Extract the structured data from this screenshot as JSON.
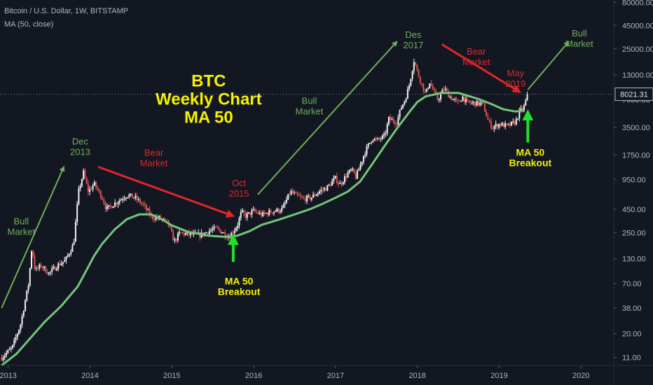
{
  "header": {
    "symbol_line": "Bitcoin / U.S. Dollar, 1W, BITSTAMP",
    "indicator_line": "MA (50, close)"
  },
  "chart_data": {
    "type": "candlestick",
    "scale": "log",
    "grid": false,
    "price_axis_side": "right",
    "x_ticks": [
      "2013",
      "2014",
      "2015",
      "2016",
      "2017",
      "2018",
      "2019",
      "2020"
    ],
    "x_range": [
      2012.9,
      2020.4
    ],
    "y_ticks": [
      11,
      20,
      38,
      70,
      130,
      250,
      450,
      950,
      1750,
      3500,
      7000,
      13000,
      25000,
      45000,
      80000
    ],
    "y_tick_labels": [
      "11.00",
      "20.00",
      "38.00",
      "70.00",
      "130.00",
      "250.00",
      "450.00",
      "950.00",
      "1750.00",
      "3500.00",
      "7000.00",
      "13000.00",
      "25000.00",
      "45000.00",
      "80000.00"
    ],
    "y_range": [
      9,
      85000
    ],
    "last_price": 8021.31,
    "last_price_label": "8021.31",
    "colors": {
      "up": "#f2f2f2",
      "down": "#d9534f",
      "ma": "#74c47a",
      "annotation_green": "#6fae58",
      "annotation_red": "#e0262a",
      "annotation_yellow": "#f5f100",
      "arrow_bright_green": "#1fe02a",
      "background": "#131722",
      "axis_text": "#b2b5be"
    },
    "series": [
      {
        "name": "MA (50, close)",
        "type": "line",
        "points": [
          [
            2012.92,
            9
          ],
          [
            2013.1,
            12
          ],
          [
            2013.25,
            17
          ],
          [
            2013.45,
            27
          ],
          [
            2013.65,
            40
          ],
          [
            2013.85,
            65
          ],
          [
            2013.95,
            95
          ],
          [
            2014.05,
            140
          ],
          [
            2014.15,
            190
          ],
          [
            2014.3,
            270
          ],
          [
            2014.45,
            350
          ],
          [
            2014.6,
            395
          ],
          [
            2014.75,
            395
          ],
          [
            2014.9,
            340
          ],
          [
            2015.0,
            300
          ],
          [
            2015.2,
            255
          ],
          [
            2015.45,
            232
          ],
          [
            2015.65,
            225
          ],
          [
            2015.8,
            232
          ],
          [
            2015.95,
            260
          ],
          [
            2016.1,
            305
          ],
          [
            2016.3,
            345
          ],
          [
            2016.5,
            395
          ],
          [
            2016.7,
            455
          ],
          [
            2016.85,
            520
          ],
          [
            2017.0,
            600
          ],
          [
            2017.15,
            700
          ],
          [
            2017.3,
            900
          ],
          [
            2017.45,
            1400
          ],
          [
            2017.6,
            2200
          ],
          [
            2017.75,
            3400
          ],
          [
            2017.9,
            5100
          ],
          [
            2018.0,
            6600
          ],
          [
            2018.1,
            7600
          ],
          [
            2018.3,
            8300
          ],
          [
            2018.5,
            8300
          ],
          [
            2018.6,
            7800
          ],
          [
            2018.75,
            7100
          ],
          [
            2018.9,
            6300
          ],
          [
            2019.05,
            5500
          ],
          [
            2019.2,
            5200
          ],
          [
            2019.3,
            5350
          ]
        ]
      },
      {
        "name": "price",
        "type": "path",
        "points": [
          [
            2012.92,
            11
          ],
          [
            2013.05,
            14
          ],
          [
            2013.15,
            25
          ],
          [
            2013.25,
            70
          ],
          [
            2013.29,
            180
          ],
          [
            2013.33,
            95
          ],
          [
            2013.4,
            110
          ],
          [
            2013.5,
            90
          ],
          [
            2013.6,
            110
          ],
          [
            2013.7,
            125
          ],
          [
            2013.8,
            190
          ],
          [
            2013.86,
            700
          ],
          [
            2013.92,
            1130
          ],
          [
            2013.98,
            700
          ],
          [
            2014.05,
            850
          ],
          [
            2014.15,
            600
          ],
          [
            2014.2,
            450
          ],
          [
            2014.3,
            520
          ],
          [
            2014.45,
            640
          ],
          [
            2014.55,
            600
          ],
          [
            2014.65,
            500
          ],
          [
            2014.75,
            370
          ],
          [
            2014.85,
            360
          ],
          [
            2014.95,
            320
          ],
          [
            2015.03,
            200
          ],
          [
            2015.1,
            250
          ],
          [
            2015.2,
            240
          ],
          [
            2015.35,
            235
          ],
          [
            2015.45,
            260
          ],
          [
            2015.55,
            280
          ],
          [
            2015.65,
            240
          ],
          [
            2015.7,
            225
          ],
          [
            2015.8,
            300
          ],
          [
            2015.85,
            420
          ],
          [
            2015.9,
            380
          ],
          [
            2016.0,
            430
          ],
          [
            2016.1,
            390
          ],
          [
            2016.2,
            420
          ],
          [
            2016.35,
            450
          ],
          [
            2016.45,
            700
          ],
          [
            2016.5,
            650
          ],
          [
            2016.6,
            580
          ],
          [
            2016.7,
            600
          ],
          [
            2016.8,
            700
          ],
          [
            2016.9,
            780
          ],
          [
            2017.0,
            980
          ],
          [
            2017.05,
            830
          ],
          [
            2017.15,
            1100
          ],
          [
            2017.2,
            1200
          ],
          [
            2017.25,
            1000
          ],
          [
            2017.35,
            1800
          ],
          [
            2017.45,
            2700
          ],
          [
            2017.5,
            2500
          ],
          [
            2017.6,
            2800
          ],
          [
            2017.65,
            4300
          ],
          [
            2017.75,
            4000
          ],
          [
            2017.8,
            5700
          ],
          [
            2017.85,
            7000
          ],
          [
            2017.9,
            10000
          ],
          [
            2017.96,
            19000
          ],
          [
            2018.0,
            14000
          ],
          [
            2018.05,
            10500
          ],
          [
            2018.1,
            8000
          ],
          [
            2018.15,
            11000
          ],
          [
            2018.2,
            8500
          ],
          [
            2018.25,
            7000
          ],
          [
            2018.33,
            9300
          ],
          [
            2018.4,
            7500
          ],
          [
            2018.5,
            6400
          ],
          [
            2018.55,
            7600
          ],
          [
            2018.6,
            6500
          ],
          [
            2018.7,
            6400
          ],
          [
            2018.8,
            6300
          ],
          [
            2018.87,
            4000
          ],
          [
            2018.92,
            3500
          ],
          [
            2019.0,
            3800
          ],
          [
            2019.1,
            3600
          ],
          [
            2019.2,
            4000
          ],
          [
            2019.25,
            5200
          ],
          [
            2019.3,
            5700
          ],
          [
            2019.35,
            8021
          ]
        ]
      }
    ],
    "annotations": [
      {
        "id": "bull-market-2013",
        "lines": [
          "Bull",
          "Market"
        ],
        "color": "green",
        "at": [
          2013.16,
          270
        ]
      },
      {
        "id": "dec-2013",
        "lines": [
          "Dec",
          "2013"
        ],
        "color": "green",
        "at": [
          2013.88,
          2000
        ]
      },
      {
        "id": "bear-market-2014",
        "lines": [
          "Bear",
          "Market"
        ],
        "color": "red",
        "at": [
          2014.78,
          1500
        ]
      },
      {
        "id": "btc-weekly-title",
        "lines": [
          "BTC",
          "Weekly Chart",
          "MA 50"
        ],
        "color": "yellow",
        "at": [
          2015.45,
          6200
        ]
      },
      {
        "id": "oct-2015",
        "lines": [
          "Oct",
          "2015"
        ],
        "color": "red",
        "at": [
          2015.82,
          700
        ]
      },
      {
        "id": "ma50-breakout-2015",
        "lines": [
          "MA 50",
          "Breakout"
        ],
        "color": "yellow",
        "at": [
          2015.82,
          60
        ]
      },
      {
        "id": "bull-market-2016",
        "lines": [
          "Bull",
          "Market"
        ],
        "color": "green",
        "at": [
          2016.68,
          5500
        ]
      },
      {
        "id": "des-2017",
        "lines": [
          "Des",
          "2017"
        ],
        "color": "green",
        "at": [
          2017.95,
          29000
        ]
      },
      {
        "id": "bear-market-2018",
        "lines": [
          "Bear",
          "Market"
        ],
        "color": "red",
        "at": [
          2018.72,
          19000
        ]
      },
      {
        "id": "may-2019",
        "lines": [
          "May",
          "2019"
        ],
        "color": "red",
        "at": [
          2019.2,
          11000
        ]
      },
      {
        "id": "ma50-breakout-2019",
        "lines": [
          "MA 50",
          "Breakout"
        ],
        "color": "yellow",
        "at": [
          2019.38,
          1500
        ]
      },
      {
        "id": "bull-market-2019",
        "lines": [
          "Bull",
          "Market"
        ],
        "color": "green",
        "at": [
          2019.98,
          30000
        ]
      }
    ],
    "arrows": [
      {
        "id": "arrow-bull-2013",
        "color": "green",
        "from": [
          2012.92,
          38
        ],
        "to": [
          2013.68,
          1300
        ]
      },
      {
        "id": "arrow-bear-2014",
        "color": "red",
        "from": [
          2014.1,
          1300
        ],
        "to": [
          2015.75,
          380
        ]
      },
      {
        "id": "arrow-bull-2016",
        "color": "green",
        "from": [
          2016.05,
          650
        ],
        "to": [
          2017.75,
          30000
        ]
      },
      {
        "id": "arrow-bear-2018",
        "color": "red",
        "from": [
          2018.3,
          28000
        ],
        "to": [
          2019.25,
          8500
        ]
      },
      {
        "id": "arrow-bull-2019",
        "color": "green",
        "from": [
          2019.35,
          9000
        ],
        "to": [
          2019.85,
          30000
        ]
      },
      {
        "id": "arrow-breakout-2015",
        "color": "bright_green",
        "from": [
          2015.75,
          120
        ],
        "to": [
          2015.75,
          230
        ]
      },
      {
        "id": "arrow-breakout-2019",
        "color": "bright_green",
        "from": [
          2019.35,
          2400
        ],
        "to": [
          2019.35,
          5200
        ]
      }
    ]
  }
}
